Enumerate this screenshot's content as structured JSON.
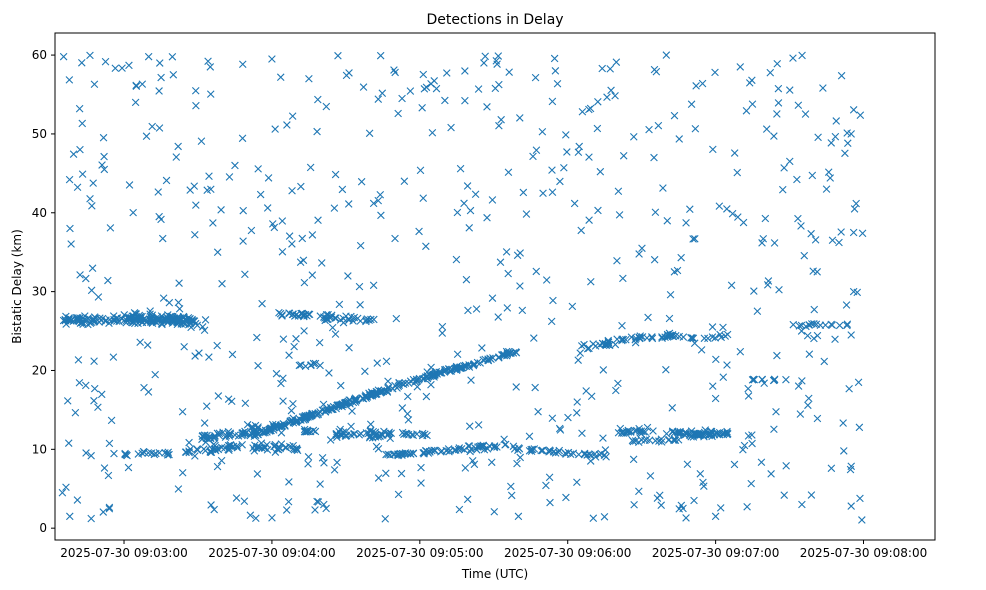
{
  "chart_data": {
    "type": "scatter",
    "title": "Detections in Delay",
    "xlabel": "Time (UTC)",
    "ylabel": "Bistatic Delay (km)",
    "x_unit": "seconds after 2025-07-30 09:03:00",
    "xlim": [
      -28,
      329
    ],
    "ylim": [
      -1.5,
      62.8
    ],
    "grid": false,
    "marker": "x",
    "color": "#1f77b4",
    "x_ticks": [
      {
        "value": 0,
        "label": "2025-07-30 09:03:00"
      },
      {
        "value": 60,
        "label": "2025-07-30 09:04:00"
      },
      {
        "value": 120,
        "label": "2025-07-30 09:05:00"
      },
      {
        "value": 180,
        "label": "2025-07-30 09:06:00"
      },
      {
        "value": 240,
        "label": "2025-07-30 09:07:00"
      },
      {
        "value": 300,
        "label": "2025-07-30 09:08:00"
      }
    ],
    "y_ticks": [
      {
        "value": 0,
        "label": "0"
      },
      {
        "value": 10,
        "label": "10"
      },
      {
        "value": 20,
        "label": "20"
      },
      {
        "value": 30,
        "label": "30"
      },
      {
        "value": 40,
        "label": "40"
      },
      {
        "value": 50,
        "label": "50"
      },
      {
        "value": 60,
        "label": "60"
      }
    ],
    "series": [
      {
        "name": "detections",
        "tracks": [
          {
            "t0": -25,
            "t1": 28,
            "y0": 26.3,
            "y1": 26.4,
            "n": 140,
            "jitter": 0.5
          },
          {
            "t0": 0,
            "t1": 35,
            "y0": 26.8,
            "y1": 25.8,
            "n": 60,
            "jitter": 0.5
          },
          {
            "t0": 0,
            "t1": 2,
            "y0": 9.3,
            "y1": 9.3,
            "n": 4,
            "jitter": 0.2
          },
          {
            "t0": 5,
            "t1": 20,
            "y0": 9.5,
            "y1": 9.5,
            "n": 14,
            "jitter": 0.2
          },
          {
            "t0": 24,
            "t1": 37,
            "y0": 9.8,
            "y1": 9.8,
            "n": 16,
            "jitter": 0.3
          },
          {
            "t0": 36,
            "t1": 72,
            "y0": 10.2,
            "y1": 10.2,
            "n": 50,
            "jitter": 0.4
          },
          {
            "t0": 30,
            "t1": 55,
            "y0": 11.6,
            "y1": 12.1,
            "n": 50,
            "jitter": 0.3
          },
          {
            "t0": 55,
            "t1": 115,
            "y0": 12.1,
            "y1": 18.5,
            "n": 170,
            "jitter": 0.25
          },
          {
            "t0": 115,
            "t1": 160,
            "y0": 18.5,
            "y1": 22.5,
            "n": 90,
            "jitter": 0.25
          },
          {
            "t0": 50,
            "t1": 65,
            "y0": 12.7,
            "y1": 12.8,
            "n": 16,
            "jitter": 0.3
          },
          {
            "t0": 73,
            "t1": 80,
            "y0": 12.3,
            "y1": 12.3,
            "n": 10,
            "jitter": 0.2
          },
          {
            "t0": 84,
            "t1": 109,
            "y0": 12.0,
            "y1": 11.8,
            "n": 45,
            "jitter": 0.4
          },
          {
            "t0": 112,
            "t1": 124,
            "y0": 12.0,
            "y1": 11.9,
            "n": 12,
            "jitter": 0.2
          },
          {
            "t0": 106,
            "t1": 118,
            "y0": 9.3,
            "y1": 9.5,
            "n": 20,
            "jitter": 0.2
          },
          {
            "t0": 120,
            "t1": 137,
            "y0": 9.6,
            "y1": 10.0,
            "n": 22,
            "jitter": 0.2
          },
          {
            "t0": 136,
            "t1": 155,
            "y0": 10.1,
            "y1": 10.5,
            "n": 24,
            "jitter": 0.3
          },
          {
            "t0": 60,
            "t1": 80,
            "y0": 27.2,
            "y1": 27.0,
            "n": 22,
            "jitter": 0.2
          },
          {
            "t0": 80,
            "t1": 103,
            "y0": 26.8,
            "y1": 26.3,
            "n": 26,
            "jitter": 0.3
          },
          {
            "t0": 70,
            "t1": 80,
            "y0": 20.7,
            "y1": 20.7,
            "n": 8,
            "jitter": 0.2
          },
          {
            "t0": 157,
            "t1": 177,
            "y0": 10.1,
            "y1": 9.8,
            "n": 20,
            "jitter": 0.3
          },
          {
            "t0": 177,
            "t1": 197,
            "y0": 9.6,
            "y1": 9.2,
            "n": 18,
            "jitter": 0.2
          },
          {
            "t0": 185,
            "t1": 200,
            "y0": 23.0,
            "y1": 23.5,
            "n": 20,
            "jitter": 0.3
          },
          {
            "t0": 200,
            "t1": 225,
            "y0": 24.0,
            "y1": 24.5,
            "n": 30,
            "jitter": 0.3
          },
          {
            "t0": 225,
            "t1": 245,
            "y0": 24.0,
            "y1": 24.5,
            "n": 14,
            "jitter": 0.3
          },
          {
            "t0": 265,
            "t1": 295,
            "y0": 25.8,
            "y1": 25.8,
            "n": 16,
            "jitter": 0.2
          },
          {
            "t0": 200,
            "t1": 215,
            "y0": 12.3,
            "y1": 12.3,
            "n": 22,
            "jitter": 0.3
          },
          {
            "t0": 205,
            "t1": 225,
            "y0": 11.0,
            "y1": 11.2,
            "n": 18,
            "jitter": 0.2
          },
          {
            "t0": 230,
            "t1": 245,
            "y0": 11.8,
            "y1": 12.0,
            "n": 36,
            "jitter": 0.3
          },
          {
            "t0": 220,
            "t1": 232,
            "y0": 12.1,
            "y1": 11.8,
            "n": 22,
            "jitter": 0.3
          },
          {
            "t0": 254,
            "t1": 265,
            "y0": 18.8,
            "y1": 18.8,
            "n": 8,
            "jitter": 0.2
          }
        ],
        "scatter_points": {
          "count": 580,
          "t_range": [
            -25,
            300
          ],
          "y_range": [
            1,
            60
          ]
        },
        "sample_points": [
          {
            "x": -24.5,
            "y": 59.8
          },
          {
            "x": -18,
            "y": 53.2
          },
          {
            "x": -12,
            "y": 56.3
          },
          {
            "x": -8,
            "y": 45.5
          },
          {
            "x": 2,
            "y": 58.7
          },
          {
            "x": 10,
            "y": 59.8
          },
          {
            "x": 20,
            "y": 57.5
          },
          {
            "x": 35,
            "y": 58.5
          },
          {
            "x": 60,
            "y": 59.5
          },
          {
            "x": 75,
            "y": 57.0
          },
          {
            "x": 110,
            "y": 57.8
          },
          {
            "x": 146,
            "y": 59.0
          },
          {
            "x": 175,
            "y": 58.0
          },
          {
            "x": 194,
            "y": 58.3
          },
          {
            "x": 220,
            "y": 60.0
          },
          {
            "x": 250,
            "y": 58.5
          },
          {
            "x": 265,
            "y": 58.9
          },
          {
            "x": 295,
            "y": 50.0
          },
          {
            "x": -22,
            "y": 1.5
          },
          {
            "x": -25,
            "y": 4.5
          },
          {
            "x": 295,
            "y": 2.8
          },
          {
            "x": 240,
            "y": 1.5
          },
          {
            "x": 228,
            "y": 1.3
          },
          {
            "x": 160,
            "y": 1.5
          },
          {
            "x": 82,
            "y": 2.5
          },
          {
            "x": 66,
            "y": 2.3
          },
          {
            "x": 275,
            "y": 3.0
          },
          {
            "x": 296,
            "y": 37.5
          },
          {
            "x": 296,
            "y": 30.0
          },
          {
            "x": 295,
            "y": 24.5
          },
          {
            "x": 298,
            "y": 18.5
          },
          {
            "x": 292,
            "y": 9.8
          },
          {
            "x": 285,
            "y": 43.0
          },
          {
            "x": 45,
            "y": 46.0
          },
          {
            "x": 38,
            "y": 35.0
          },
          {
            "x": 215,
            "y": 47.0
          }
        ]
      }
    ]
  }
}
